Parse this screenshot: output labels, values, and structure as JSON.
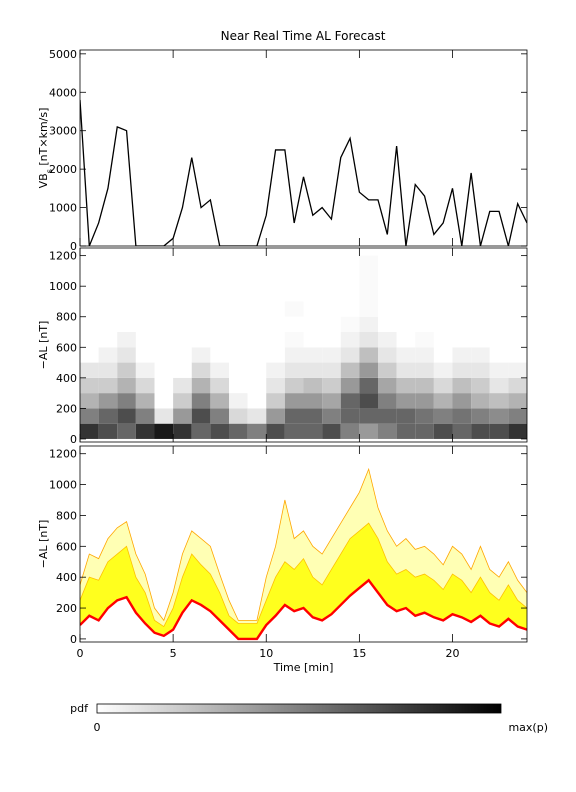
{
  "chart_data": [
    {
      "type": "line",
      "title": "Near Real Time AL Forecast",
      "ylabel": [
        "VB",
        "s",
        " [nT×km/s]"
      ],
      "color": "#000000",
      "x": [
        0,
        0.5,
        1,
        1.5,
        2,
        2.5,
        3,
        3.5,
        4,
        4.5,
        5,
        5.5,
        6,
        6.5,
        7,
        7.5,
        8,
        8.5,
        9,
        9.5,
        10,
        10.5,
        11,
        11.5,
        12,
        12.5,
        13,
        13.5,
        14,
        14.5,
        15,
        15.5,
        16,
        16.5,
        17,
        17.5,
        18,
        18.5,
        19,
        19.5,
        20,
        20.5,
        21,
        21.5,
        22,
        22.5,
        23,
        23.5,
        24
      ],
      "values": [
        3800,
        0,
        600,
        1500,
        3100,
        3000,
        0,
        0,
        0,
        0,
        200,
        1000,
        2300,
        1000,
        1200,
        0,
        0,
        0,
        0,
        0,
        800,
        2500,
        2500,
        600,
        1800,
        800,
        1000,
        700,
        2300,
        2800,
        1400,
        1200,
        1200,
        300,
        2600,
        0,
        1600,
        1300,
        300,
        600,
        1500,
        0,
        1900,
        0,
        900,
        900,
        0,
        1100,
        600
      ],
      "xlim": [
        0,
        24
      ],
      "xticks": [
        0,
        5,
        10,
        15,
        20
      ],
      "xtick_labels": false,
      "ylim": [
        0,
        5100
      ],
      "yticks": [
        0,
        1000,
        2000,
        3000,
        4000,
        5000
      ]
    },
    {
      "type": "heatmap",
      "ylabel": "−AL [nT]",
      "xbins": [
        0,
        1,
        2,
        3,
        4,
        5,
        6,
        7,
        8,
        9,
        10,
        11,
        12,
        13,
        14,
        15,
        16,
        17,
        18,
        19,
        20,
        21,
        22,
        23,
        24
      ],
      "ybins": [
        0,
        100,
        200,
        300,
        400,
        500,
        600,
        700,
        800,
        900,
        1000,
        1100,
        1200
      ],
      "z": [
        [
          0.8,
          0.5,
          0.3,
          0.2,
          0.1,
          0,
          0,
          0,
          0,
          0,
          0,
          0
        ],
        [
          0.7,
          0.6,
          0.4,
          0.2,
          0.1,
          0.05,
          0,
          0,
          0,
          0,
          0,
          0
        ],
        [
          0.6,
          0.7,
          0.5,
          0.3,
          0.2,
          0.1,
          0.05,
          0,
          0,
          0,
          0,
          0
        ],
        [
          0.8,
          0.5,
          0.3,
          0.15,
          0.05,
          0,
          0,
          0,
          0,
          0,
          0,
          0
        ],
        [
          0.9,
          0.1,
          0,
          0,
          0,
          0,
          0,
          0,
          0,
          0,
          0,
          0
        ],
        [
          0.8,
          0.4,
          0.2,
          0.1,
          0,
          0,
          0,
          0,
          0,
          0,
          0,
          0
        ],
        [
          0.6,
          0.7,
          0.5,
          0.3,
          0.15,
          0.05,
          0,
          0,
          0,
          0,
          0,
          0
        ],
        [
          0.7,
          0.5,
          0.3,
          0.15,
          0.05,
          0,
          0,
          0,
          0,
          0,
          0,
          0
        ],
        [
          0.6,
          0.15,
          0.05,
          0,
          0,
          0,
          0,
          0,
          0,
          0,
          0,
          0
        ],
        [
          0.5,
          0.1,
          0,
          0,
          0,
          0,
          0,
          0,
          0,
          0,
          0,
          0
        ],
        [
          0.7,
          0.4,
          0.2,
          0.1,
          0.05,
          0,
          0,
          0,
          0,
          0,
          0,
          0
        ],
        [
          0.6,
          0.6,
          0.4,
          0.2,
          0.1,
          0.05,
          0.02,
          0,
          0.02,
          0,
          0,
          0
        ],
        [
          0.6,
          0.6,
          0.4,
          0.25,
          0.1,
          0.05,
          0,
          0,
          0,
          0,
          0,
          0
        ],
        [
          0.7,
          0.5,
          0.35,
          0.2,
          0.1,
          0.05,
          0,
          0,
          0,
          0,
          0,
          0
        ],
        [
          0.5,
          0.6,
          0.6,
          0.4,
          0.25,
          0.1,
          0.05,
          0.02,
          0,
          0,
          0,
          0
        ],
        [
          0.4,
          0.6,
          0.7,
          0.6,
          0.4,
          0.25,
          0.1,
          0.05,
          0.02,
          0.02,
          0.02,
          0.02
        ],
        [
          0.5,
          0.6,
          0.5,
          0.35,
          0.2,
          0.1,
          0.05,
          0,
          0,
          0,
          0,
          0
        ],
        [
          0.6,
          0.6,
          0.4,
          0.25,
          0.1,
          0.05,
          0,
          0,
          0,
          0,
          0,
          0
        ],
        [
          0.6,
          0.55,
          0.4,
          0.25,
          0.1,
          0.05,
          0.02,
          0,
          0,
          0,
          0,
          0
        ],
        [
          0.7,
          0.5,
          0.3,
          0.15,
          0.05,
          0,
          0,
          0,
          0,
          0,
          0,
          0
        ],
        [
          0.6,
          0.55,
          0.4,
          0.25,
          0.1,
          0.05,
          0,
          0,
          0,
          0,
          0,
          0
        ],
        [
          0.7,
          0.5,
          0.3,
          0.2,
          0.1,
          0.05,
          0,
          0,
          0,
          0,
          0,
          0
        ],
        [
          0.7,
          0.45,
          0.25,
          0.1,
          0.05,
          0,
          0,
          0,
          0,
          0,
          0,
          0
        ],
        [
          0.8,
          0.5,
          0.3,
          0.15,
          0.05,
          0,
          0,
          0,
          0,
          0,
          0,
          0
        ]
      ],
      "colorbar": {
        "label": "pdf",
        "min_label": "0",
        "max_label": "max(p)"
      },
      "xlim": [
        0,
        24
      ],
      "xticks": [
        0,
        5,
        10,
        15,
        20
      ],
      "xtick_labels": false,
      "ylim": [
        -20,
        1250
      ],
      "yticks": [
        0,
        200,
        400,
        600,
        800,
        1000,
        1200
      ]
    },
    {
      "type": "band",
      "ylabel": "−AL [nT]",
      "xlabel": "Time [min]",
      "x": [
        0,
        0.5,
        1,
        1.5,
        2,
        2.5,
        3,
        3.5,
        4,
        4.5,
        5,
        5.5,
        6,
        6.5,
        7,
        7.5,
        8,
        8.5,
        9,
        9.5,
        10,
        10.5,
        11,
        11.5,
        12,
        12.5,
        13,
        13.5,
        14,
        14.5,
        15,
        15.5,
        16,
        16.5,
        17,
        17.5,
        18,
        18.5,
        19,
        19.5,
        20,
        20.5,
        21,
        21.5,
        22,
        22.5,
        23,
        23.5,
        24
      ],
      "series": [
        {
          "kind": "area",
          "color": "#ffffb4",
          "edge_color": "#ffa500",
          "values": [
            350,
            550,
            520,
            650,
            720,
            760,
            550,
            420,
            200,
            120,
            300,
            550,
            700,
            650,
            600,
            420,
            250,
            120,
            120,
            120,
            400,
            600,
            900,
            650,
            700,
            600,
            550,
            650,
            750,
            850,
            950,
            1100,
            850,
            700,
            600,
            650,
            580,
            600,
            550,
            480,
            600,
            550,
            450,
            600,
            450,
            400,
            500,
            380,
            300
          ]
        },
        {
          "kind": "area",
          "color": "#ffff1e",
          "edge_color": "#ffc000",
          "values": [
            250,
            400,
            380,
            500,
            550,
            600,
            400,
            300,
            120,
            80,
            200,
            400,
            550,
            480,
            420,
            300,
            150,
            100,
            100,
            100,
            250,
            400,
            500,
            450,
            520,
            400,
            350,
            450,
            550,
            650,
            700,
            750,
            650,
            500,
            420,
            450,
            400,
            420,
            380,
            320,
            420,
            380,
            300,
            400,
            300,
            250,
            350,
            250,
            200
          ]
        },
        {
          "kind": "line",
          "color": "#ff0000",
          "values": [
            90,
            150,
            120,
            200,
            250,
            270,
            170,
            100,
            40,
            20,
            60,
            170,
            250,
            220,
            180,
            120,
            60,
            0,
            0,
            0,
            90,
            150,
            220,
            180,
            200,
            140,
            120,
            160,
            220,
            280,
            330,
            380,
            300,
            220,
            180,
            200,
            150,
            170,
            140,
            120,
            160,
            140,
            110,
            150,
            100,
            80,
            130,
            80,
            60
          ]
        }
      ],
      "xlim": [
        0,
        24
      ],
      "xticks": [
        0,
        5,
        10,
        15,
        20
      ],
      "xtick_labels": true,
      "ylim": [
        -20,
        1250
      ],
      "yticks": [
        0,
        200,
        400,
        600,
        800,
        1000,
        1200
      ]
    }
  ]
}
